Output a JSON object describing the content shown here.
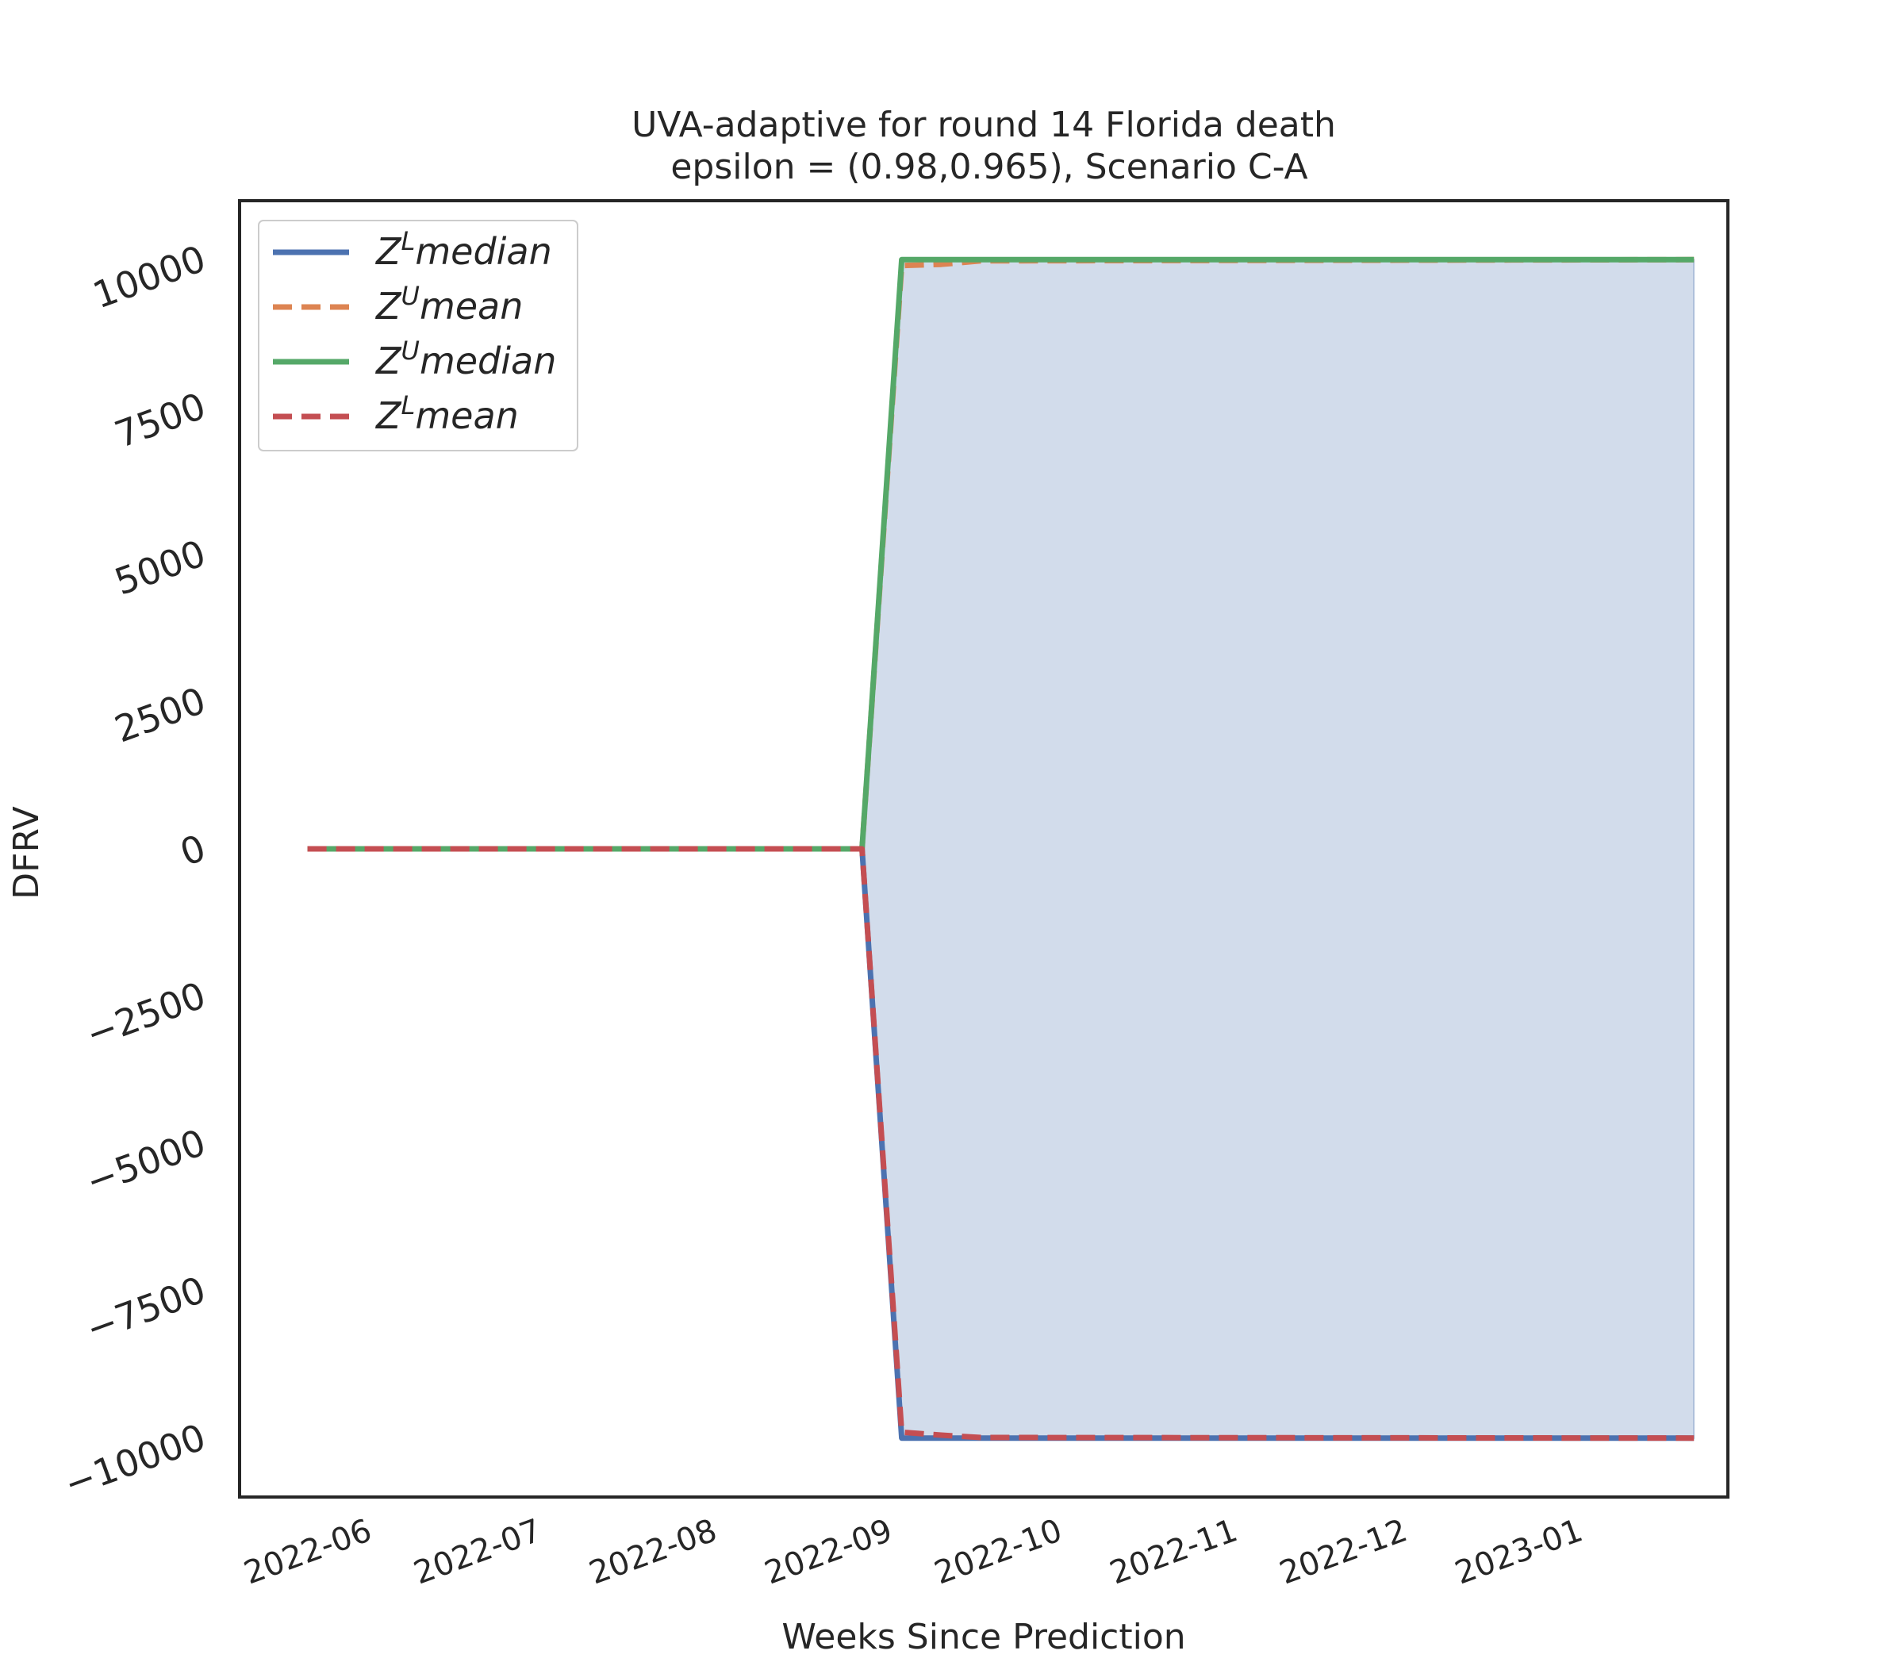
{
  "chart_data": {
    "type": "line",
    "title_line1": "UVA-adaptive for round 14 Florida  death",
    "title_line2": " epsilon = (0.98,0.965), Scenario C-A",
    "xlabel": "Weeks Since Prediction",
    "ylabel": "DFRV",
    "xlim": [
      "2022-05-09",
      "2023-01-27"
    ],
    "ylim": [
      -11000,
      11000
    ],
    "grid": false,
    "legend_position": "top-left",
    "yticks": [
      -10000,
      -7500,
      -5000,
      -2500,
      0,
      2500,
      5000,
      7500,
      10000
    ],
    "ytick_labels": [
      "−10000",
      "−7500",
      "−5000",
      "−2500",
      "0",
      "2500",
      "5000",
      "7500",
      "10000"
    ],
    "xticks": [
      "2022-06-01",
      "2022-07-01",
      "2022-08-01",
      "2022-09-01",
      "2022-10-01",
      "2022-11-01",
      "2022-12-01",
      "2023-01-01"
    ],
    "xtick_labels": [
      "2022-06",
      "2022-07",
      "2022-08",
      "2022-09",
      "2022-10",
      "2022-11",
      "2022-12",
      "2023-01"
    ],
    "x": [
      "2022-05-21",
      "2022-08-27",
      "2022-09-03",
      "2022-09-10",
      "2022-09-17",
      "2023-01-21"
    ],
    "series": [
      {
        "name": "Z^L median",
        "base": "Z",
        "sup": "L",
        "suffix": "median",
        "color": "#4c72b0",
        "dash": "solid",
        "values": [
          0,
          0,
          -10000,
          -10000,
          -10000,
          -10000
        ]
      },
      {
        "name": "Z^U mean",
        "base": "Z",
        "sup": "U",
        "suffix": "mean",
        "color": "#dd8452",
        "dash": "dashed",
        "values": [
          0,
          0,
          9900,
          9920,
          9980,
          10000
        ]
      },
      {
        "name": "Z^U median",
        "base": "Z",
        "sup": "U",
        "suffix": "median",
        "color": "#55a868",
        "dash": "solid",
        "values": [
          0,
          0,
          10000,
          10000,
          10000,
          10000
        ]
      },
      {
        "name": "Z^L mean",
        "base": "Z",
        "sup": "L",
        "suffix": "mean",
        "color": "#c44e52",
        "dash": "dashed",
        "values": [
          0,
          0,
          -9900,
          -9950,
          -9990,
          -10000
        ]
      }
    ],
    "fill_between": {
      "upper": "Z^U median",
      "lower": "Z^L median",
      "color": "#4c72b0",
      "opacity": 0.25
    }
  }
}
